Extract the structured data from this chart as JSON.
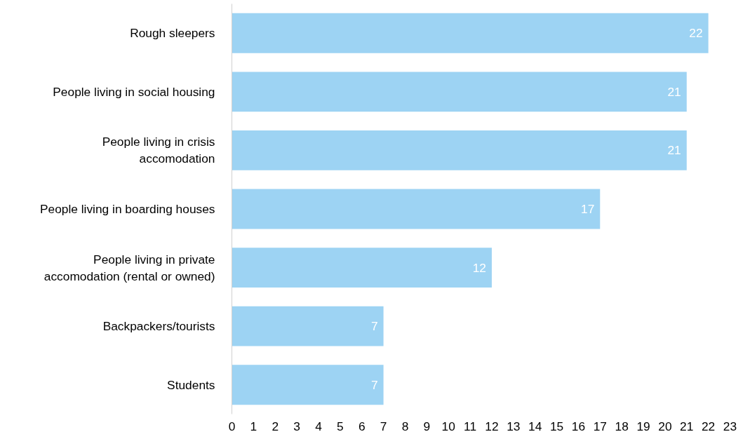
{
  "chart_data": {
    "type": "bar",
    "orientation": "horizontal",
    "categories": [
      "Rough sleepers",
      "People living in social housing",
      "People living in crisis accomodation",
      "People living in boarding houses",
      "People living in private accomodation (rental or owned)",
      "Backpackers/tourists",
      "Students"
    ],
    "values": [
      22,
      21,
      21,
      17,
      12,
      7,
      7
    ],
    "color": "#9dd3f3",
    "xlim": [
      0,
      23
    ],
    "xticks": [
      0,
      1,
      2,
      3,
      4,
      5,
      6,
      7,
      8,
      9,
      10,
      11,
      12,
      13,
      14,
      15,
      16,
      17,
      18,
      19,
      20,
      21,
      22,
      23
    ],
    "grid": false,
    "data_labels": true
  }
}
